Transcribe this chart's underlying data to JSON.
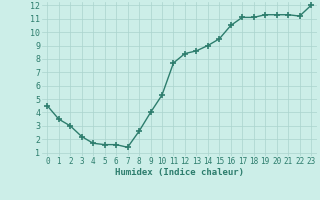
{
  "x": [
    0,
    1,
    2,
    3,
    4,
    5,
    6,
    7,
    8,
    9,
    10,
    11,
    12,
    13,
    14,
    15,
    16,
    17,
    18,
    19,
    20,
    21,
    22,
    23
  ],
  "y": [
    4.5,
    3.5,
    3.0,
    2.2,
    1.7,
    1.6,
    1.6,
    1.4,
    2.6,
    4.0,
    5.3,
    7.7,
    8.4,
    8.6,
    9.0,
    9.5,
    10.5,
    11.1,
    11.1,
    11.3,
    11.3,
    11.3,
    11.2,
    12.0
  ],
  "xlabel": "Humidex (Indice chaleur)",
  "ylim": [
    1,
    12
  ],
  "xlim": [
    -0.5,
    23.5
  ],
  "yticks": [
    1,
    2,
    3,
    4,
    5,
    6,
    7,
    8,
    9,
    10,
    11,
    12
  ],
  "xticks": [
    0,
    1,
    2,
    3,
    4,
    5,
    6,
    7,
    8,
    9,
    10,
    11,
    12,
    13,
    14,
    15,
    16,
    17,
    18,
    19,
    20,
    21,
    22,
    23
  ],
  "line_color": "#2d7d6d",
  "bg_color": "#cceee8",
  "grid_color": "#aad4ce",
  "marker": "+",
  "marker_size": 4,
  "marker_lw": 1.2,
  "line_width": 1.0,
  "xlabel_fontsize": 6.5,
  "tick_fontsize": 5.5,
  "ytick_fontsize": 6.0
}
